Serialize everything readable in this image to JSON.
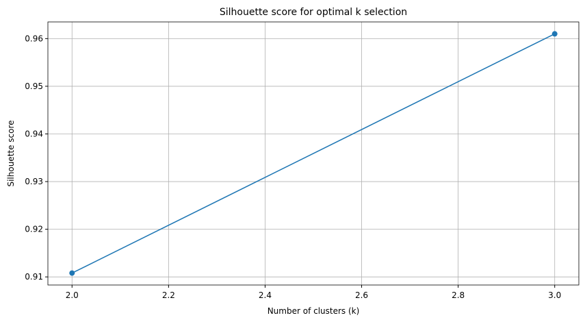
{
  "chart_data": {
    "type": "line",
    "title": "Silhouette score for optimal k selection",
    "x_label": "Number of clusters (k)",
    "y_label": "Silhouette score",
    "x": [
      2,
      3
    ],
    "series": [
      {
        "color": "#1f77b4",
        "values": [
          0.9108,
          0.961
        ]
      }
    ],
    "xlim": [
      1.95,
      3.05
    ],
    "xticks": [
      {
        "value": 2,
        "label": "2.0"
      },
      {
        "value": 2.2,
        "label": "2.2"
      },
      {
        "value": 2.4,
        "label": "2.4"
      },
      {
        "value": 2.6,
        "label": "2.6"
      },
      {
        "value": 2.8,
        "label": "2.8"
      },
      {
        "value": 3,
        "label": "3.0"
      }
    ],
    "ylim": [
      0.9083,
      0.9635
    ],
    "yticks": [
      0.91,
      0.92,
      0.93,
      0.94,
      0.95,
      0.96
    ],
    "grid": true,
    "markers": true
  }
}
